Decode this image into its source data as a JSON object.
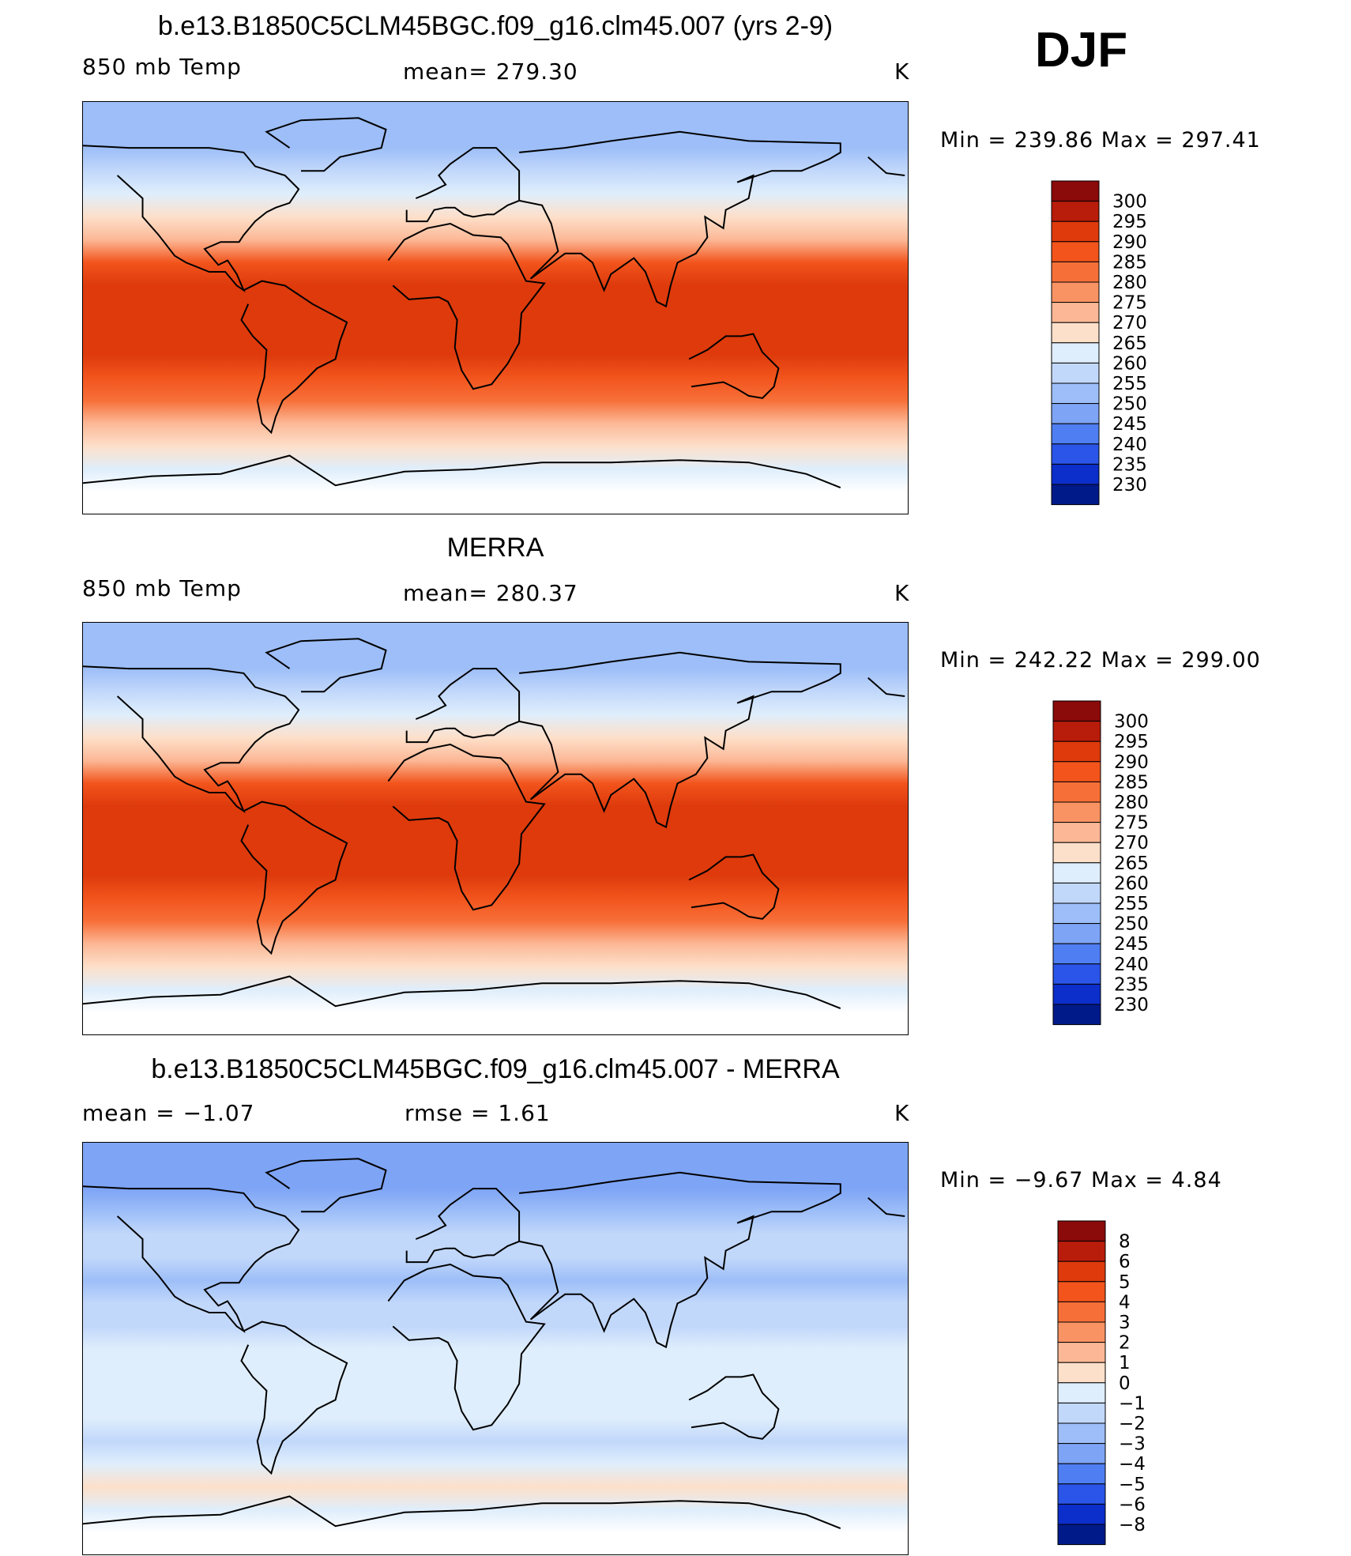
{
  "season": "DJF",
  "panels": [
    {
      "id": "model",
      "title": "b.e13.B1850C5CLM45BGC.f09_g16.clm45.007 (yrs 2-9)",
      "left_label": "850 mb Temp",
      "center_label": "mean=  279.30",
      "units": "K",
      "minmax": "Min  =  239.86  Max  =  297.41",
      "colorbar": {
        "labels": [
          "300",
          "295",
          "290",
          "285",
          "280",
          "275",
          "270",
          "265",
          "260",
          "255",
          "250",
          "245",
          "240",
          "235",
          "230"
        ],
        "colors": [
          "#8b0a0a",
          "#b81c0a",
          "#de3a0c",
          "#f2541c",
          "#f76f38",
          "#fa9363",
          "#fcb896",
          "#fde0ca",
          "#dfeefc",
          "#c2d8fb",
          "#9dbef8",
          "#7ea4f5",
          "#4f7ef2",
          "#2a55e8",
          "#0c2ecb",
          "#001a8a"
        ]
      },
      "bands": {
        "lat_knots": [
          -90,
          -80,
          -70,
          -60,
          -50,
          -40,
          -30,
          -20,
          -10,
          0,
          10,
          20,
          30,
          40,
          50,
          60,
          70,
          80,
          90
        ],
        "colors": [
          "#ffffff",
          "#ffffff",
          "#dfeefc",
          "#fde0ca",
          "#fcb896",
          "#f76f38",
          "#f2541c",
          "#de3a0c",
          "#de3a0c",
          "#de3a0c",
          "#de3a0c",
          "#f2541c",
          "#fcb896",
          "#fde0ca",
          "#dfeefc",
          "#c2d8fb",
          "#9dbef8",
          "#9dbef8",
          "#9dbef8"
        ]
      }
    },
    {
      "id": "obs",
      "title": "MERRA",
      "left_label": "850 mb Temp",
      "center_label": "mean=  280.37",
      "units": "K",
      "minmax": "Min  =  242.22  Max  =  299.00",
      "colorbar": {
        "labels": [
          "300",
          "295",
          "290",
          "285",
          "280",
          "275",
          "270",
          "265",
          "260",
          "255",
          "250",
          "245",
          "240",
          "235",
          "230"
        ],
        "colors": [
          "#8b0a0a",
          "#b81c0a",
          "#de3a0c",
          "#f2541c",
          "#f76f38",
          "#fa9363",
          "#fcb896",
          "#fde0ca",
          "#dfeefc",
          "#c2d8fb",
          "#9dbef8",
          "#7ea4f5",
          "#4f7ef2",
          "#2a55e8",
          "#0c2ecb",
          "#001a8a"
        ]
      },
      "bands": {
        "lat_knots": [
          -90,
          -80,
          -70,
          -60,
          -50,
          -40,
          -30,
          -20,
          -10,
          0,
          10,
          20,
          30,
          40,
          50,
          60,
          70,
          80,
          90
        ],
        "colors": [
          "#ffffff",
          "#ffffff",
          "#dfeefc",
          "#fde0ca",
          "#fcb896",
          "#f76f38",
          "#f2541c",
          "#de3a0c",
          "#de3a0c",
          "#de3a0c",
          "#de3a0c",
          "#f2541c",
          "#fcb896",
          "#fde0ca",
          "#dfeefc",
          "#c2d8fb",
          "#9dbef8",
          "#9dbef8",
          "#9dbef8"
        ]
      }
    },
    {
      "id": "diff",
      "title": "b.e13.B1850C5CLM45BGC.f09_g16.clm45.007 - MERRA",
      "left_label": "mean  =    −1.07",
      "center_label": "rmse  =     1.61",
      "units": "K",
      "minmax": "Min  =    −9.67  Max  =      4.84",
      "colorbar": {
        "labels": [
          "8",
          "6",
          "5",
          "4",
          "3",
          "2",
          "1",
          "0",
          "−1",
          "−2",
          "−3",
          "−4",
          "−5",
          "−6",
          "−8"
        ],
        "colors": [
          "#8b0a0a",
          "#b81c0a",
          "#de3a0c",
          "#f2541c",
          "#f76f38",
          "#fa9363",
          "#fcb896",
          "#fde0ca",
          "#dfeefc",
          "#c2d8fb",
          "#9dbef8",
          "#7ea4f5",
          "#4f7ef2",
          "#2a55e8",
          "#0c2ecb",
          "#001a8a"
        ]
      },
      "bands": {
        "lat_knots": [
          -90,
          -80,
          -70,
          -60,
          -50,
          -40,
          -30,
          -20,
          -10,
          0,
          10,
          20,
          30,
          40,
          50,
          60,
          70,
          80,
          90
        ],
        "colors": [
          "#ffffff",
          "#ffffff",
          "#dfeefc",
          "#fde0ca",
          "#dfeefc",
          "#c2d8fb",
          "#dfeefc",
          "#dfeefc",
          "#dfeefc",
          "#dfeefc",
          "#c2d8fb",
          "#c2d8fb",
          "#9dbef8",
          "#c2d8fb",
          "#c2d8fb",
          "#9dbef8",
          "#7ea4f5",
          "#7ea4f5",
          "#7ea4f5"
        ]
      }
    }
  ]
}
